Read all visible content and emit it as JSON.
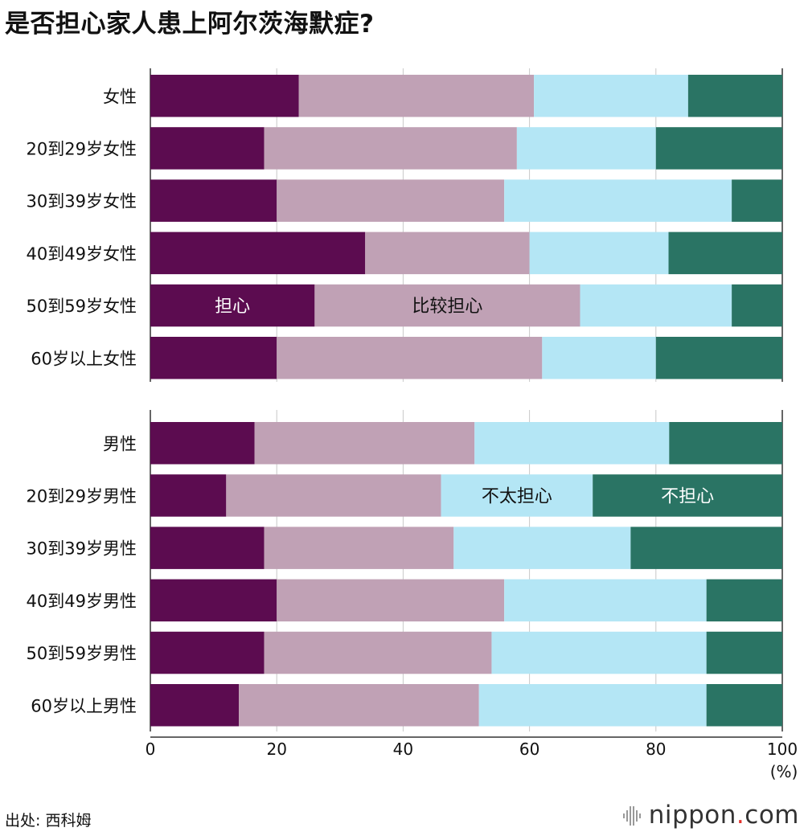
{
  "title": "是否担心家人患上阿尔茨海默症?",
  "source": "出处: 西科姆",
  "brand": {
    "name": "nippon",
    "dot": ".",
    "suffix": "com"
  },
  "chart_data": {
    "type": "bar",
    "orientation": "horizontal",
    "stacked": true,
    "xlim": [
      0,
      100
    ],
    "xticks": [
      "0",
      "20",
      "40",
      "60",
      "80",
      "100"
    ],
    "xunit": "(%)",
    "grid": true,
    "colors": {
      "担心": "#5c0c50",
      "比较担心": "#c0a1b5",
      "不太担心": "#b4e6f5",
      "不担心": "#2a7464"
    },
    "series_labels": [
      "担心",
      "比较担心",
      "不太担心",
      "不担心"
    ],
    "groups": [
      {
        "rows": [
          {
            "label": "女性",
            "values": [
              23.5,
              37.2,
              24.4,
              14.9
            ]
          },
          {
            "label": "20到29岁女性",
            "values": [
              18,
              40,
              22,
              20
            ]
          },
          {
            "label": "30到39岁女性",
            "values": [
              20,
              36,
              36,
              8
            ]
          },
          {
            "label": "40到49岁女性",
            "values": [
              34,
              26,
              22,
              18
            ]
          },
          {
            "label": "50到59岁女性",
            "values": [
              26,
              42,
              24,
              8
            ]
          },
          {
            "label": "60岁以上女性",
            "values": [
              20,
              42,
              18,
              20
            ]
          }
        ]
      },
      {
        "rows": [
          {
            "label": "男性",
            "values": [
              16.5,
              34.8,
              30.8,
              17.9
            ]
          },
          {
            "label": "20到29岁男性",
            "values": [
              12,
              34,
              24,
              30
            ]
          },
          {
            "label": "30到39岁男性",
            "values": [
              18,
              30,
              28,
              24
            ]
          },
          {
            "label": "40到49岁男性",
            "values": [
              20,
              36,
              32,
              12
            ]
          },
          {
            "label": "50到59岁男性",
            "values": [
              18,
              36,
              34,
              12
            ]
          },
          {
            "label": "60岁以上男性",
            "values": [
              14,
              38,
              36,
              12
            ]
          }
        ]
      }
    ],
    "annotations": [
      {
        "group": 0,
        "row": 4,
        "series": 0,
        "text": "担心"
      },
      {
        "group": 0,
        "row": 4,
        "series": 1,
        "text": "比较担心"
      },
      {
        "group": 1,
        "row": 1,
        "series": 2,
        "text": "不太担心"
      },
      {
        "group": 1,
        "row": 1,
        "series": 3,
        "text": "不担心"
      }
    ]
  }
}
